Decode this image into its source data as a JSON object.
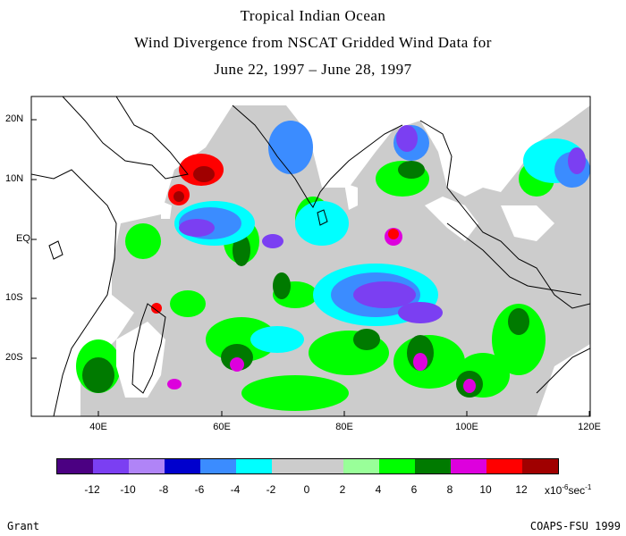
{
  "title": {
    "line1": "Tropical Indian Ocean",
    "line2": "Wind Divergence from NSCAT Gridded Wind Data for",
    "line3": "June 22, 1997 – June 28, 1997"
  },
  "map": {
    "lat_labels": [
      "20N",
      "10N",
      "EQ",
      "10S",
      "20S"
    ],
    "lon_labels": [
      "40E",
      "60E",
      "80E",
      "100E",
      "120E"
    ]
  },
  "legend": {
    "colors": [
      "#4b0082",
      "#7b3ff2",
      "#b084f7",
      "#0000cd",
      "#3b8cff",
      "#00ffff",
      "#cccccc",
      "#cccccc",
      "#99ff99",
      "#00ff00",
      "#007a00",
      "#dd00dd",
      "#ff0000",
      "#a00000"
    ],
    "ticks": [
      "-12",
      "-10",
      "-8",
      "-6",
      "-4",
      "-2",
      "0",
      "2",
      "4",
      "6",
      "8",
      "10",
      "12"
    ],
    "units_prefix": "x10",
    "units_exp": "-6",
    "units_suffix": "sec",
    "units_exp2": "-1"
  },
  "credits": {
    "left": "Grant",
    "right": "COAPS-FSU 1999"
  }
}
